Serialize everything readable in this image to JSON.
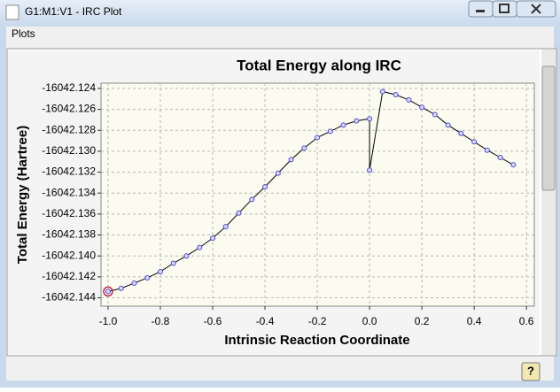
{
  "window": {
    "title": "G1:M1:V1 - IRC Plot"
  },
  "menu": [
    "Plots"
  ],
  "help_button": "?",
  "chart_data": {
    "type": "line",
    "title": "Total Energy along IRC",
    "xlabel": "Intrinsic Reaction Coordinate",
    "ylabel": "Total Energy (Hartree)",
    "x": [
      -1.0,
      -0.95,
      -0.9,
      -0.85,
      -0.8,
      -0.75,
      -0.7,
      -0.65,
      -0.6,
      -0.55,
      -0.5,
      -0.45,
      -0.4,
      -0.35,
      -0.3,
      -0.25,
      -0.2,
      -0.15,
      -0.1,
      -0.05,
      0,
      0,
      0.05,
      0.1,
      0.15,
      0.2,
      0.25,
      0.3,
      0.35,
      0.4,
      0.45,
      0.5,
      0.55
    ],
    "values": [
      -16042.1434,
      -16042.1431,
      -16042.1426,
      -16042.1421,
      -16042.1415,
      -16042.1407,
      -16042.14,
      -16042.1392,
      -16042.1383,
      -16042.1372,
      -16042.1359,
      -16042.1346,
      -16042.1334,
      -16042.1321,
      -16042.1308,
      -16042.1297,
      -16042.1287,
      -16042.1281,
      -16042.1275,
      -16042.1271,
      -16042.1269,
      -16042.1318,
      -16042.1243,
      -16042.1246,
      -16042.1251,
      -16042.1258,
      -16042.1265,
      -16042.1275,
      -16042.1283,
      -16042.1291,
      -16042.1299,
      -16042.1306,
      -16042.1313
    ],
    "color": "#000000",
    "marker_color": "#4a4ad0",
    "selected_index": 0,
    "selected_color": "#c02050",
    "xlim": [
      -1.027,
      0.63
    ],
    "ylim": [
      -16042.1448,
      -16042.1235
    ],
    "xticks": [
      {
        "value": -1.0,
        "label": "-1.0"
      },
      -0.8,
      -0.6,
      -0.4,
      -0.2,
      {
        "value": 0,
        "label": "0.0"
      },
      0.2,
      0.4,
      0.6
    ],
    "yticks": [
      -16042.124,
      -16042.126,
      -16042.128,
      {
        "value": -16042.13,
        "label": "-16042.130"
      },
      -16042.132,
      -16042.134,
      -16042.136,
      -16042.138,
      {
        "value": -16042.14,
        "label": "-16042.140"
      },
      -16042.142,
      -16042.144
    ],
    "grid": true
  }
}
